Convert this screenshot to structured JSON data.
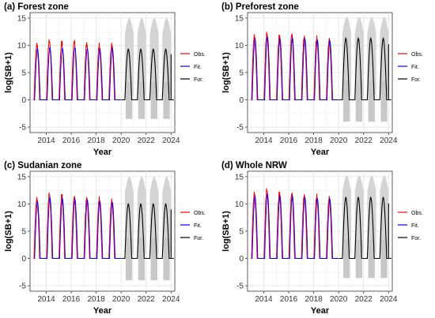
{
  "chart_data": [
    {
      "type": "line",
      "title": "(a) Forest zone",
      "xlabel": "Year",
      "ylabel": "log(SB+1)",
      "xlim": [
        2012.7,
        2024.3
      ],
      "ylim": [
        -6,
        16
      ],
      "xticks": [
        2014,
        2016,
        2018,
        2020,
        2022,
        2024
      ],
      "yticks": [
        -5,
        0,
        5,
        10,
        15
      ],
      "grid": true,
      "legend_position": "right",
      "legend_font_size": 7,
      "obs_peaks": [
        10.2,
        10.8,
        10.5,
        10.7,
        10.3,
        9.9,
        10.1
      ],
      "fit_peaks": [
        9.4,
        9.6,
        9.5,
        9.6,
        9.4,
        9.3,
        9.5
      ],
      "forecast_peak": 9.3,
      "pi_upper": 15.0,
      "pi_lower": -3.5,
      "pi_inner_upper": 3.3,
      "series": [
        {
          "name": "Obs.",
          "color": "#ff0000"
        },
        {
          "name": "Fit.",
          "color": "#0000ff"
        },
        {
          "name": "For.",
          "color": "#000000"
        }
      ]
    },
    {
      "type": "line",
      "title": "(b) Preforest zone",
      "xlabel": "Year",
      "ylabel": "log(SB+1)",
      "xlim": [
        2012.7,
        2024.3
      ],
      "ylim": [
        -6,
        16
      ],
      "xticks": [
        2014,
        2016,
        2018,
        2020,
        2022,
        2024
      ],
      "yticks": [
        -5,
        0,
        5,
        10,
        15
      ],
      "grid": true,
      "legend_position": "right",
      "legend_font_size": 7,
      "obs_peaks": [
        11.8,
        12.2,
        11.6,
        11.9,
        11.5,
        11.2,
        11.0
      ],
      "fit_peaks": [
        11.2,
        11.6,
        11.3,
        11.4,
        11.2,
        11.0,
        10.9
      ],
      "forecast_peak": 11.3,
      "pi_upper": 15.2,
      "pi_lower": -4.0,
      "pi_inner_upper": 3.5,
      "series": [
        {
          "name": "Obs.",
          "color": "#ff0000"
        },
        {
          "name": "Fit.",
          "color": "#0000ff"
        },
        {
          "name": "For.",
          "color": "#000000"
        }
      ]
    },
    {
      "type": "line",
      "title": "(c) Sudanian zone",
      "xlabel": "Year",
      "ylabel": "log(SB+1)",
      "xlim": [
        2012.7,
        2024.3
      ],
      "ylim": [
        -6,
        16
      ],
      "xticks": [
        2014,
        2016,
        2018,
        2020,
        2022,
        2024
      ],
      "yticks": [
        -5,
        0,
        5,
        10,
        15
      ],
      "grid": true,
      "legend_position": "right",
      "legend_font_size": 7,
      "obs_peaks": [
        11.0,
        11.8,
        11.5,
        11.2,
        11.0,
        10.8,
        10.6
      ],
      "fit_peaks": [
        10.4,
        11.2,
        11.0,
        10.9,
        10.7,
        10.5,
        10.3
      ],
      "forecast_peak": 10.0,
      "pi_upper": 15.0,
      "pi_lower": -4.0,
      "pi_inner_upper": 3.7,
      "series": [
        {
          "name": "Obs.",
          "color": "#ff0000"
        },
        {
          "name": "Fit.",
          "color": "#0000ff"
        },
        {
          "name": "For.",
          "color": "#000000"
        }
      ]
    },
    {
      "type": "line",
      "title": "(d) Whole NRW",
      "xlabel": "Year",
      "ylabel": "log(SB+1)",
      "xlim": [
        2012.7,
        2024.3
      ],
      "ylim": [
        -6,
        16
      ],
      "xticks": [
        2014,
        2016,
        2018,
        2020,
        2022,
        2024
      ],
      "yticks": [
        -5,
        0,
        5,
        10,
        15
      ],
      "grid": true,
      "legend_position": "right",
      "legend_font_size": 7,
      "obs_peaks": [
        12.0,
        12.6,
        11.9,
        11.8,
        11.5,
        11.3,
        11.1
      ],
      "fit_peaks": [
        11.4,
        11.9,
        11.5,
        11.5,
        11.2,
        11.0,
        10.9
      ],
      "forecast_peak": 11.2,
      "pi_upper": 15.2,
      "pi_lower": -3.6,
      "pi_inner_upper": 3.5,
      "series": [
        {
          "name": "Obs.",
          "color": "#ff0000"
        },
        {
          "name": "Fit.",
          "color": "#0000ff"
        },
        {
          "name": "For.",
          "color": "#000000"
        }
      ]
    }
  ]
}
